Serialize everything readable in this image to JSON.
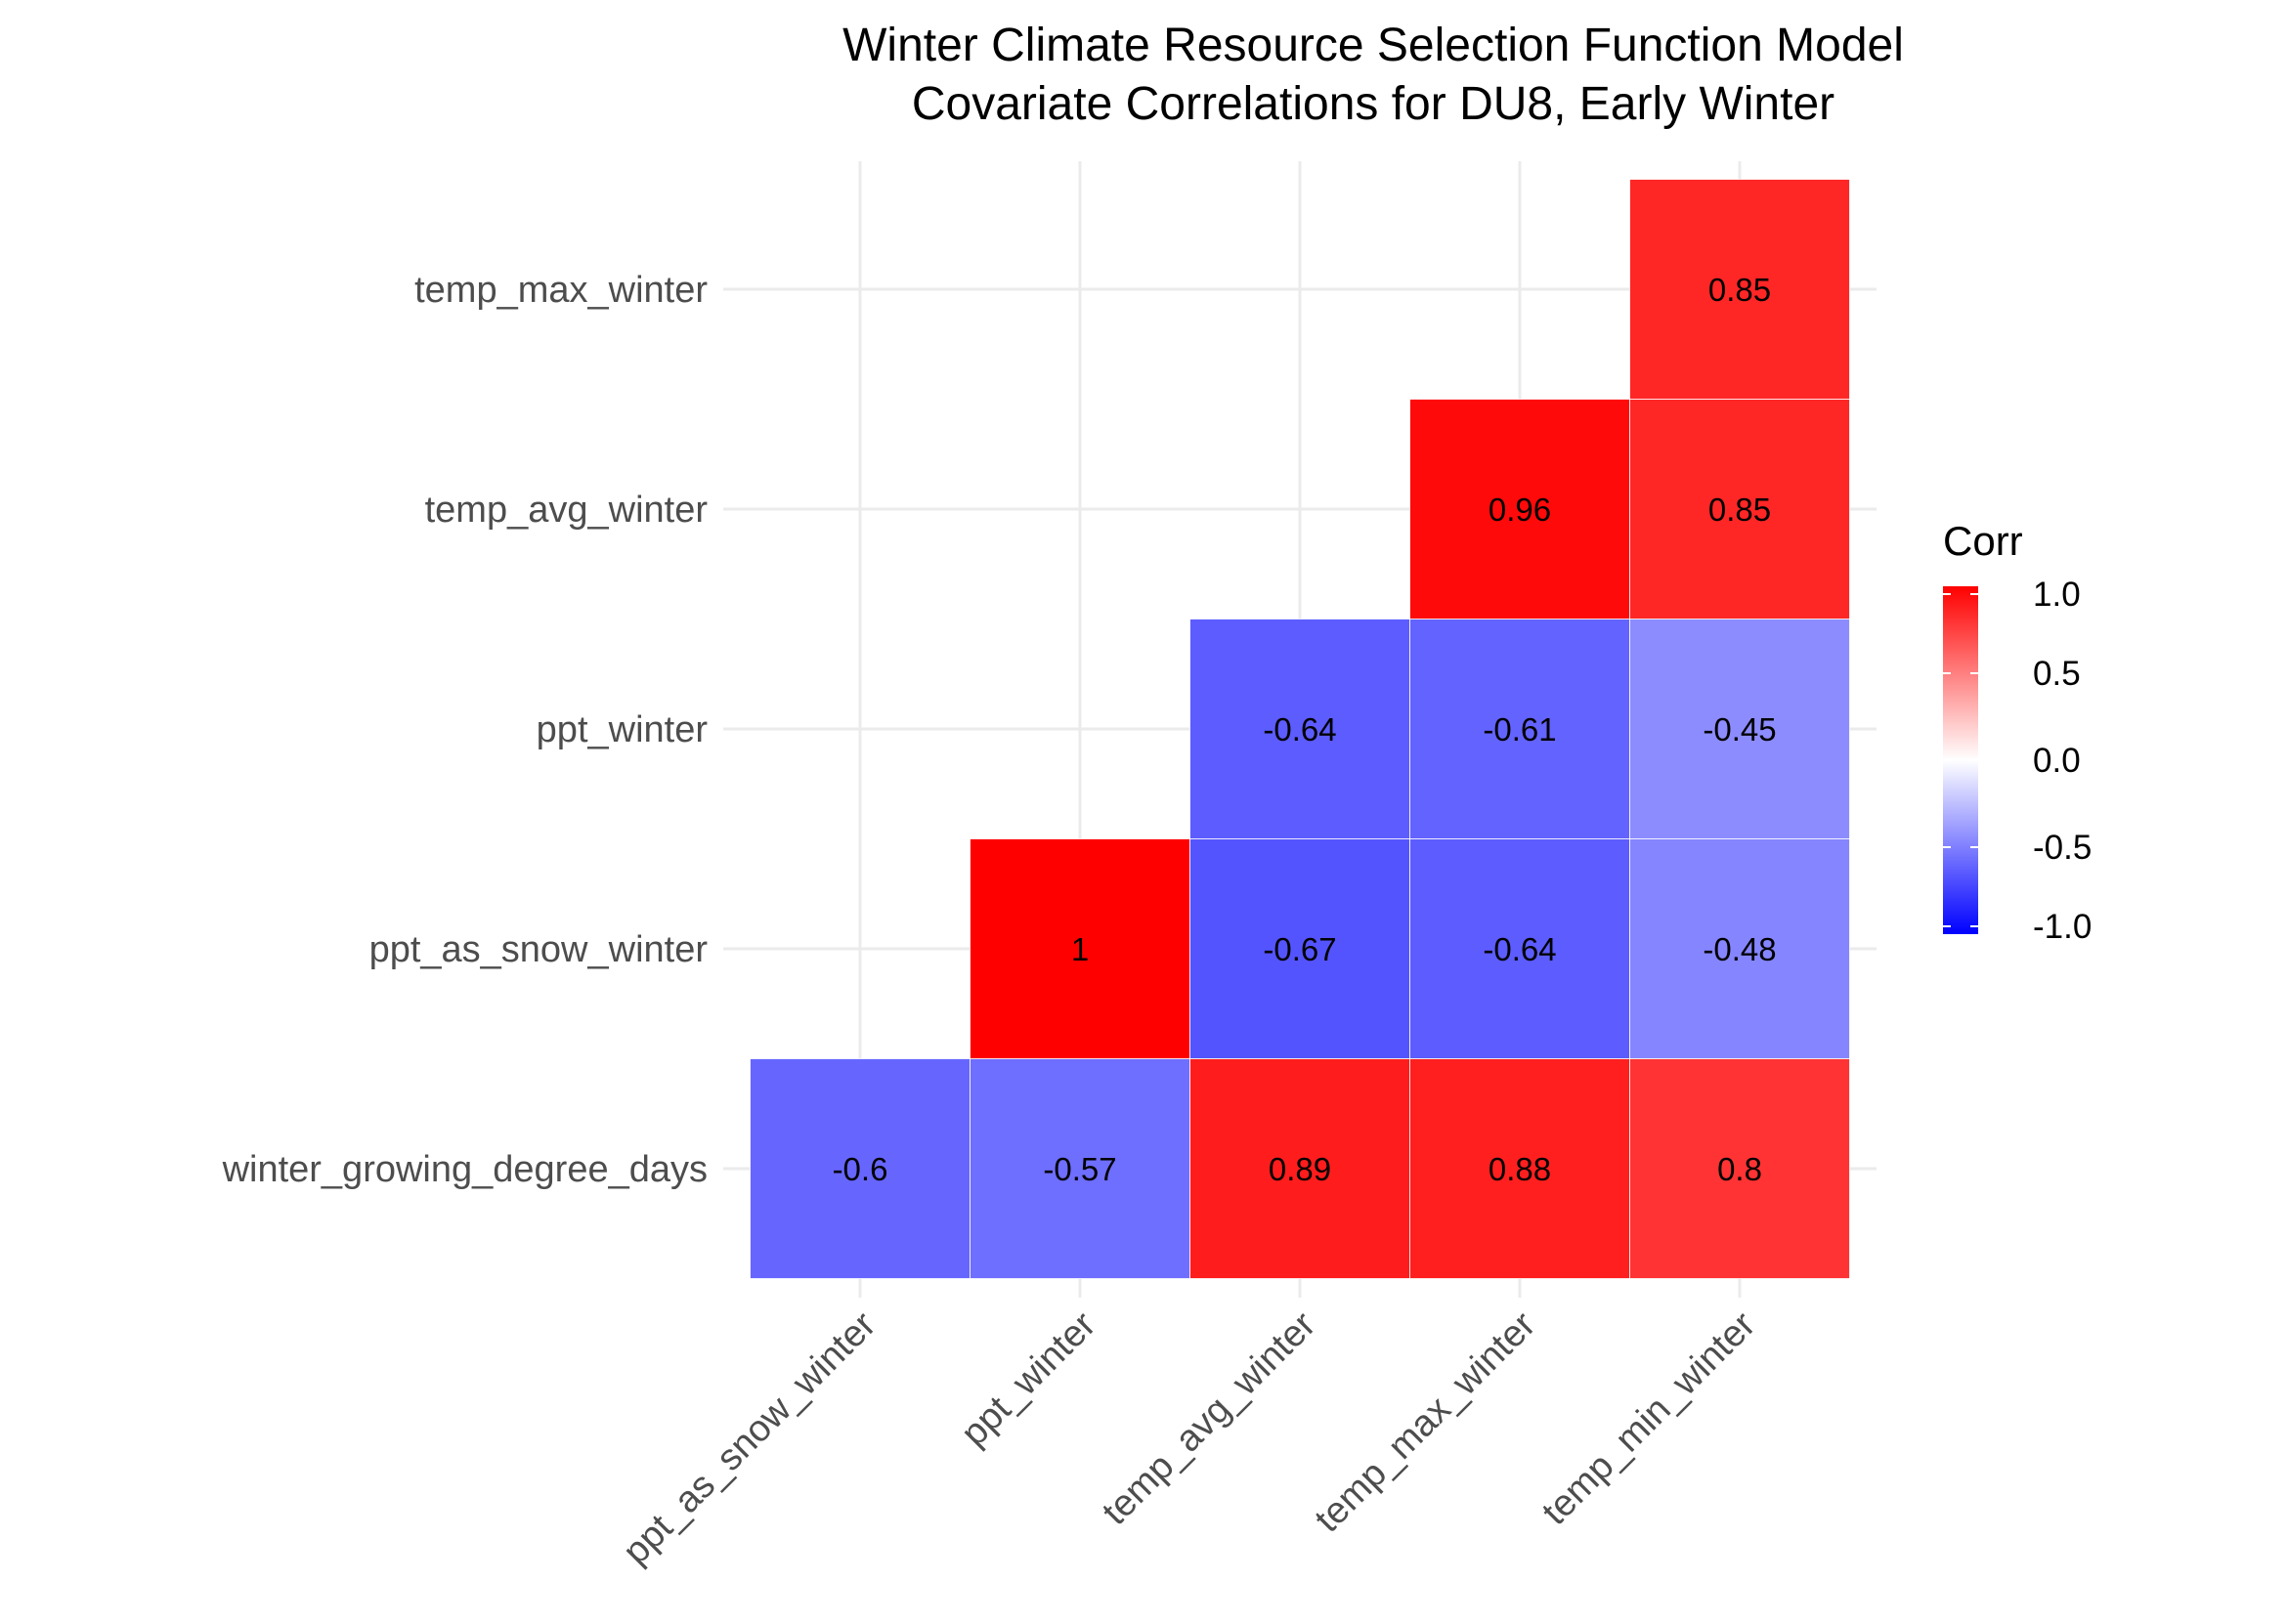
{
  "chart_data": {
    "type": "heatmap",
    "title": [
      "Winter Climate Resource Selection Function Model",
      "Covariate Correlations for DU8, Early Winter"
    ],
    "x_categories": [
      "ppt_as_snow_winter",
      "ppt_winter",
      "temp_avg_winter",
      "temp_max_winter",
      "temp_min_winter"
    ],
    "y_categories": [
      "winter_growing_degree_days",
      "ppt_as_snow_winter",
      "ppt_winter",
      "temp_avg_winter",
      "temp_max_winter"
    ],
    "cells": [
      {
        "x": "ppt_as_snow_winter",
        "y": "winter_growing_degree_days",
        "value": -0.6,
        "label": "-0.6"
      },
      {
        "x": "ppt_winter",
        "y": "winter_growing_degree_days",
        "value": -0.57,
        "label": "-0.57"
      },
      {
        "x": "temp_avg_winter",
        "y": "winter_growing_degree_days",
        "value": 0.89,
        "label": "0.89"
      },
      {
        "x": "temp_max_winter",
        "y": "winter_growing_degree_days",
        "value": 0.88,
        "label": "0.88"
      },
      {
        "x": "temp_min_winter",
        "y": "winter_growing_degree_days",
        "value": 0.8,
        "label": "0.8"
      },
      {
        "x": "ppt_winter",
        "y": "ppt_as_snow_winter",
        "value": 1.0,
        "label": "1"
      },
      {
        "x": "temp_avg_winter",
        "y": "ppt_as_snow_winter",
        "value": -0.67,
        "label": "-0.67"
      },
      {
        "x": "temp_max_winter",
        "y": "ppt_as_snow_winter",
        "value": -0.64,
        "label": "-0.64"
      },
      {
        "x": "temp_min_winter",
        "y": "ppt_as_snow_winter",
        "value": -0.48,
        "label": "-0.48"
      },
      {
        "x": "temp_avg_winter",
        "y": "ppt_winter",
        "value": -0.64,
        "label": "-0.64"
      },
      {
        "x": "temp_max_winter",
        "y": "ppt_winter",
        "value": -0.61,
        "label": "-0.61"
      },
      {
        "x": "temp_min_winter",
        "y": "ppt_winter",
        "value": -0.45,
        "label": "-0.45"
      },
      {
        "x": "temp_max_winter",
        "y": "temp_avg_winter",
        "value": 0.96,
        "label": "0.96"
      },
      {
        "x": "temp_min_winter",
        "y": "temp_avg_winter",
        "value": 0.85,
        "label": "0.85"
      },
      {
        "x": "temp_min_winter",
        "y": "temp_max_winter",
        "value": 0.85,
        "label": "0.85"
      }
    ],
    "legend": {
      "title": "Corr",
      "ticks": [
        1.0,
        0.5,
        0.0,
        -0.5,
        -1.0
      ],
      "tick_labels": [
        "1.0",
        "0.5",
        "0.0",
        "-0.5",
        "-1.0"
      ],
      "range": [
        -1,
        1
      ],
      "low_color": "#0000ff",
      "mid_color": "#ffffff",
      "high_color": "#ff0000",
      "placement": "right"
    },
    "grid": true,
    "grid_color": "#ebebeb"
  }
}
